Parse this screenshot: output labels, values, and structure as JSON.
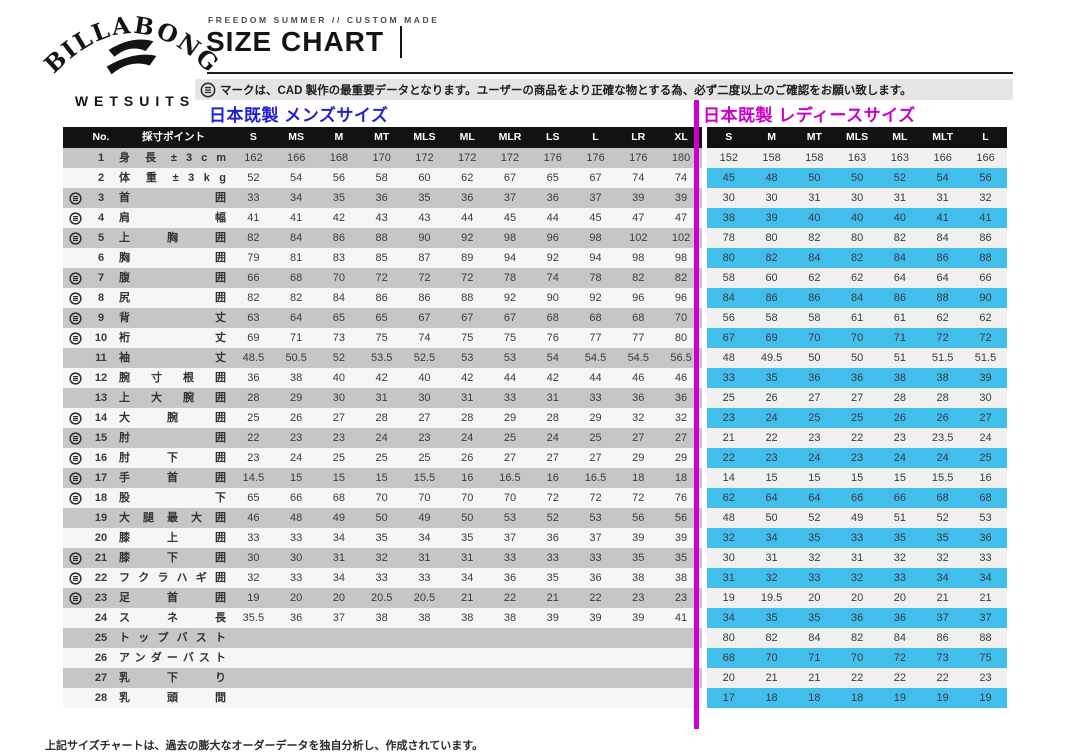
{
  "brand": {
    "name": "BILLABONG",
    "tagline": "WETSUITS"
  },
  "header": {
    "eyebrow": "FREEDOM SUMMER // CUSTOM MADE",
    "title": "SIZE CHART",
    "notice": "マークは、CAD 製作の最重要データとなります。ユーザーの商品をより正確な物とする為、必ず二度以上のご確認をお願い致します。"
  },
  "sections": {
    "mens": {
      "title": "日本既製 メンズサイズ"
    },
    "womens": {
      "title": "日本既製 レディースサイズ"
    }
  },
  "table": {
    "no_header": "No.",
    "point_header": "採寸ポイント",
    "mens_columns": [
      "S",
      "MS",
      "M",
      "MT",
      "MLS",
      "ML",
      "MLR",
      "LS",
      "L",
      "LR",
      "XL"
    ],
    "womens_columns": [
      "S",
      "M",
      "MT",
      "MLS",
      "ML",
      "MLT",
      "L"
    ],
    "rows": [
      {
        "no": 1,
        "cad": false,
        "label": "身 長 ± 3 c m",
        "mens": [
          162,
          166,
          168,
          170,
          172,
          172,
          172,
          176,
          176,
          176,
          180
        ],
        "womens": [
          152,
          158,
          158,
          163,
          163,
          166,
          166
        ]
      },
      {
        "no": 2,
        "cad": false,
        "label": "体 重 ± 3 k g",
        "mens": [
          52,
          54,
          56,
          58,
          60,
          62,
          67,
          65,
          67,
          74,
          74
        ],
        "womens": [
          45,
          48,
          50,
          50,
          52,
          54,
          56
        ]
      },
      {
        "no": 3,
        "cad": true,
        "label": "首 囲",
        "mens": [
          33,
          34,
          35,
          36,
          35,
          36,
          37,
          36,
          37,
          39,
          39
        ],
        "womens": [
          30,
          30,
          31,
          30,
          31,
          31,
          32
        ]
      },
      {
        "no": 4,
        "cad": true,
        "label": "肩 幅",
        "mens": [
          41,
          41,
          42,
          43,
          43,
          44,
          45,
          44,
          45,
          47,
          47
        ],
        "womens": [
          38,
          39,
          40,
          40,
          40,
          41,
          41
        ]
      },
      {
        "no": 5,
        "cad": true,
        "label": "上 胸 囲",
        "mens": [
          82,
          84,
          86,
          88,
          90,
          92,
          98,
          96,
          98,
          102,
          102
        ],
        "womens": [
          78,
          80,
          82,
          80,
          82,
          84,
          86
        ]
      },
      {
        "no": 6,
        "cad": false,
        "label": "胸 囲",
        "mens": [
          79,
          81,
          83,
          85,
          87,
          89,
          94,
          92,
          94,
          98,
          98
        ],
        "womens": [
          80,
          82,
          84,
          82,
          84,
          86,
          88
        ]
      },
      {
        "no": 7,
        "cad": true,
        "label": "腹 囲",
        "mens": [
          66,
          68,
          70,
          72,
          72,
          72,
          78,
          74,
          78,
          82,
          82
        ],
        "womens": [
          58,
          60,
          62,
          62,
          64,
          64,
          66
        ]
      },
      {
        "no": 8,
        "cad": true,
        "label": "尻 囲",
        "mens": [
          82,
          82,
          84,
          86,
          86,
          88,
          92,
          90,
          92,
          96,
          96
        ],
        "womens": [
          84,
          86,
          86,
          84,
          86,
          88,
          90
        ]
      },
      {
        "no": 9,
        "cad": true,
        "label": "背 丈",
        "mens": [
          63,
          64,
          65,
          65,
          67,
          67,
          67,
          68,
          68,
          68,
          70
        ],
        "womens": [
          56,
          58,
          58,
          61,
          61,
          62,
          62
        ]
      },
      {
        "no": 10,
        "cad": true,
        "label": "裄 丈",
        "mens": [
          69,
          71,
          73,
          75,
          74,
          75,
          75,
          76,
          77,
          77,
          80
        ],
        "womens": [
          67,
          69,
          70,
          70,
          71,
          72,
          72
        ]
      },
      {
        "no": 11,
        "cad": false,
        "label": "袖 丈",
        "mens": [
          48.5,
          50.5,
          52,
          53.5,
          52.5,
          53,
          53,
          54,
          54.5,
          54.5,
          56.5
        ],
        "womens": [
          48,
          49.5,
          50,
          50,
          51,
          51.5,
          51.5
        ]
      },
      {
        "no": 12,
        "cad": true,
        "label": "腕 寸 根 囲",
        "mens": [
          36,
          38,
          40,
          42,
          40,
          42,
          44,
          42,
          44,
          46,
          46
        ],
        "womens": [
          33,
          35,
          36,
          36,
          38,
          38,
          39
        ]
      },
      {
        "no": 13,
        "cad": false,
        "label": "上 大 腕 囲",
        "mens": [
          28,
          29,
          30,
          31,
          30,
          31,
          33,
          31,
          33,
          36,
          36
        ],
        "womens": [
          25,
          26,
          27,
          27,
          28,
          28,
          30
        ]
      },
      {
        "no": 14,
        "cad": true,
        "label": "大 腕 囲",
        "mens": [
          25,
          26,
          27,
          28,
          27,
          28,
          29,
          28,
          29,
          32,
          32
        ],
        "womens": [
          23,
          24,
          25,
          25,
          26,
          26,
          27
        ]
      },
      {
        "no": 15,
        "cad": true,
        "label": "肘 囲",
        "mens": [
          22,
          23,
          23,
          24,
          23,
          24,
          25,
          24,
          25,
          27,
          27
        ],
        "womens": [
          21,
          22,
          23,
          22,
          23,
          23.5,
          24
        ]
      },
      {
        "no": 16,
        "cad": true,
        "label": "肘 下 囲",
        "mens": [
          23,
          24,
          25,
          25,
          25,
          26,
          27,
          27,
          27,
          29,
          29
        ],
        "womens": [
          22,
          23,
          24,
          23,
          24,
          24,
          25
        ]
      },
      {
        "no": 17,
        "cad": true,
        "label": "手 首 囲",
        "mens": [
          14.5,
          15,
          15,
          15,
          15.5,
          16,
          16.5,
          16,
          16.5,
          18,
          18
        ],
        "womens": [
          14,
          15,
          15,
          15,
          15,
          15.5,
          16
        ]
      },
      {
        "no": 18,
        "cad": true,
        "label": "股 下",
        "mens": [
          65,
          66,
          68,
          70,
          70,
          70,
          70,
          72,
          72,
          72,
          76
        ],
        "womens": [
          62,
          64,
          64,
          66,
          66,
          68,
          68
        ]
      },
      {
        "no": 19,
        "cad": false,
        "label": "大 腿 最 大 囲",
        "mens": [
          46,
          48,
          49,
          50,
          49,
          50,
          53,
          52,
          53,
          56,
          56
        ],
        "womens": [
          48,
          50,
          52,
          49,
          51,
          52,
          53
        ]
      },
      {
        "no": 20,
        "cad": false,
        "label": "膝 上 囲",
        "mens": [
          33,
          33,
          34,
          35,
          34,
          35,
          37,
          36,
          37,
          39,
          39
        ],
        "womens": [
          32,
          34,
          35,
          33,
          35,
          35,
          36
        ]
      },
      {
        "no": 21,
        "cad": true,
        "label": "膝 下 囲",
        "mens": [
          30,
          30,
          31,
          32,
          31,
          31,
          33,
          33,
          33,
          35,
          35
        ],
        "womens": [
          30,
          31,
          32,
          31,
          32,
          32,
          33
        ]
      },
      {
        "no": 22,
        "cad": true,
        "label": "フクラハギ囲",
        "mens": [
          32,
          33,
          34,
          33,
          33,
          34,
          36,
          35,
          36,
          38,
          38
        ],
        "womens": [
          31,
          32,
          33,
          32,
          33,
          34,
          34
        ]
      },
      {
        "no": 23,
        "cad": true,
        "label": "足 首 囲",
        "mens": [
          19,
          20,
          20,
          20.5,
          20.5,
          21,
          22,
          21,
          22,
          23,
          23
        ],
        "womens": [
          19,
          19.5,
          20,
          20,
          20,
          21,
          21
        ]
      },
      {
        "no": 24,
        "cad": false,
        "label": "ス ネ 長",
        "mens": [
          35.5,
          36,
          37,
          38,
          38,
          38,
          38,
          39,
          39,
          39,
          41
        ],
        "womens": [
          34,
          35,
          35,
          36,
          36,
          37,
          37
        ]
      },
      {
        "no": 25,
        "cad": false,
        "label": "トップバスト",
        "mens": [],
        "womens": [
          80,
          82,
          84,
          82,
          84,
          86,
          88
        ]
      },
      {
        "no": 26,
        "cad": false,
        "label": "アンダーバスト",
        "mens": [],
        "womens": [
          68,
          70,
          71,
          70,
          72,
          73,
          75
        ]
      },
      {
        "no": 27,
        "cad": false,
        "label": "乳 下 り",
        "mens": [],
        "womens": [
          20,
          21,
          21,
          22,
          22,
          22,
          23
        ]
      },
      {
        "no": 28,
        "cad": false,
        "label": "乳 頭 間",
        "mens": [],
        "womens": [
          17,
          18,
          18,
          18,
          19,
          19,
          19
        ]
      }
    ]
  },
  "footer": {
    "note": "上記サイズチャートは、過去の膨大なオーダーデータを独自分析し、作成されています。"
  },
  "colors": {
    "mens_title": "#2222d2",
    "womens_title": "#cc00cc",
    "divider": "#cc00cc",
    "header_bg": "#121212",
    "mens_stripe": "#c6c6c6",
    "mens_alt": "#f6f6f6",
    "womens_stripe": "#41beeb",
    "womens_alt": "#f0f0f0"
  }
}
